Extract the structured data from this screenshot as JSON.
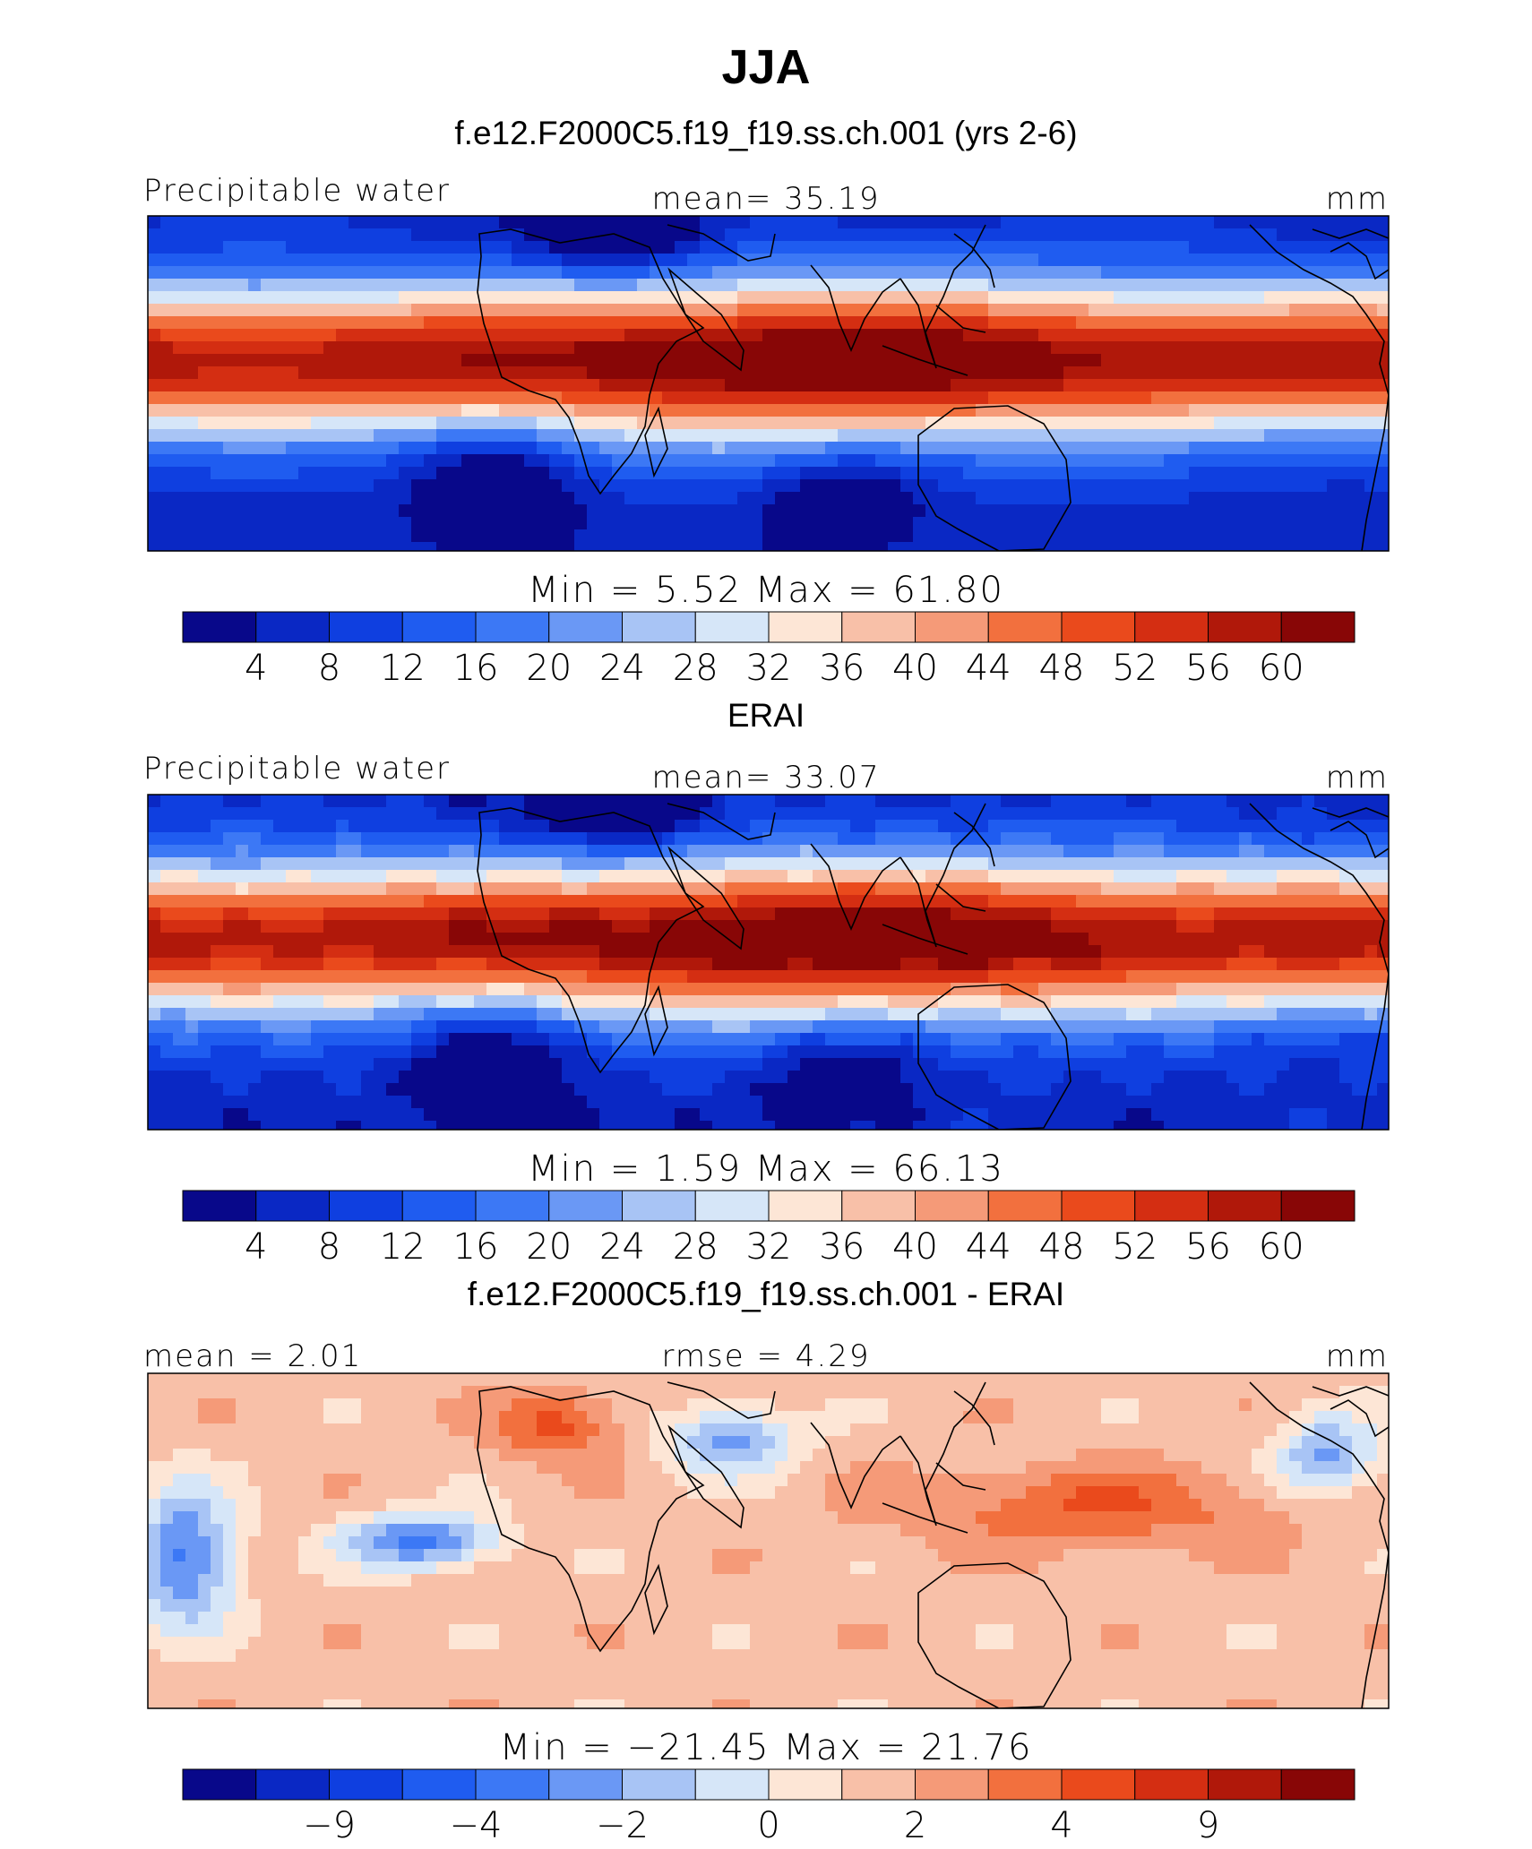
{
  "figure": {
    "title": "JJA",
    "colors": [
      "#08088a",
      "#0a28c4",
      "#0f3fe0",
      "#1f5cf0",
      "#3c78f5",
      "#6a98f5",
      "#a8c4f5",
      "#d6e6f8",
      "#fde6d6",
      "#f8c0a8",
      "#f59a78",
      "#f2703e",
      "#ea4a1c",
      "#d42e12",
      "#b0180a",
      "#880606"
    ]
  },
  "panels": [
    {
      "title": "f.e12.F2000C5.f19_f19.ss.ch.001 (yrs 2-6)",
      "left_label": "Precipitable water",
      "center_label": "mean=   35.19",
      "right_label": "mm",
      "minmax": "Min =    5.52  Max =   61.80",
      "ticks": [
        "4",
        "8",
        "12",
        "16",
        "20",
        "24",
        "28",
        "32",
        "36",
        "40",
        "44",
        "48",
        "52",
        "56",
        "60"
      ]
    },
    {
      "title": "ERAI",
      "left_label": "Precipitable water",
      "center_label": "mean=   33.07",
      "right_label": "mm",
      "minmax": "Min =    1.59  Max =   66.13",
      "ticks": [
        "4",
        "8",
        "12",
        "16",
        "20",
        "24",
        "28",
        "32",
        "36",
        "40",
        "44",
        "48",
        "52",
        "56",
        "60"
      ]
    },
    {
      "title": "f.e12.F2000C5.f19_f19.ss.ch.001 - ERAI",
      "left_label": "mean =    2.01",
      "center_label": "rmse =    4.29",
      "right_label": "mm",
      "minmax": "Min = −21.45  Max =   21.76",
      "ticks": [
        "−9",
        "−4",
        "−2",
        "0",
        "2",
        "4",
        "9"
      ]
    }
  ]
}
